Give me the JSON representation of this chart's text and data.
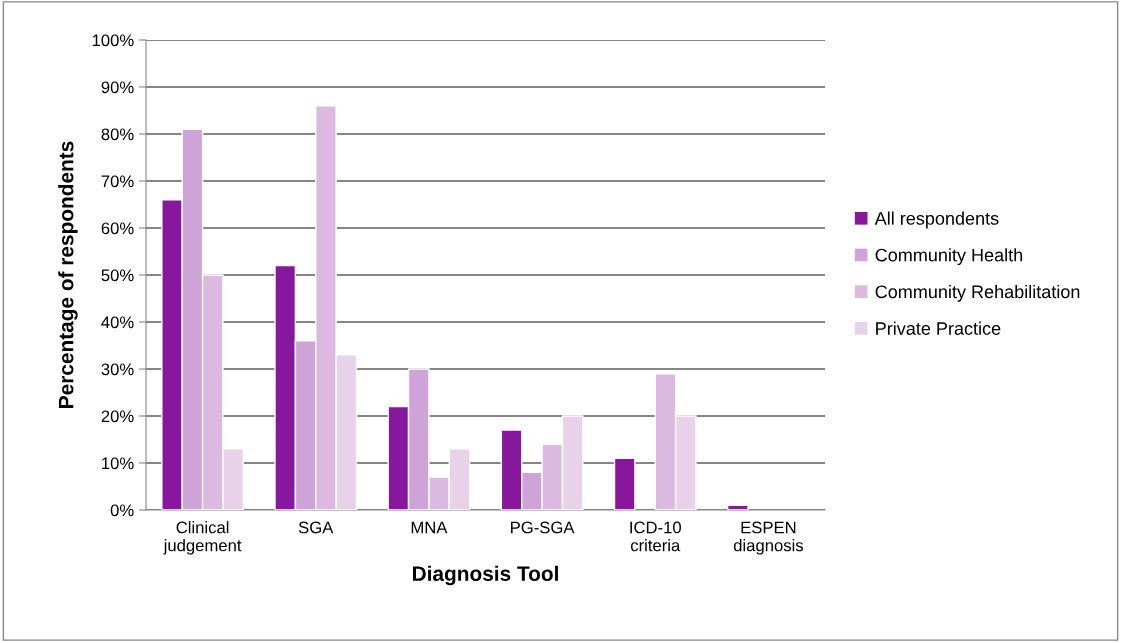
{
  "chart_data": {
    "type": "bar",
    "xlabel": "Diagnosis Tool",
    "ylabel": "Percentage of respondents",
    "categories": [
      "Clinical\njudgement",
      "SGA",
      "MNA",
      "PG-SGA",
      "ICD-10\ncriteria",
      "ESPEN\ndiagnosis"
    ],
    "series": [
      {
        "name": "All respondents",
        "color": "#87189d",
        "values": [
          66,
          52,
          22,
          17,
          11,
          1
        ]
      },
      {
        "name": "Community Health",
        "color": "#cea4d8",
        "values": [
          81,
          36,
          30,
          8,
          0,
          0
        ]
      },
      {
        "name": "Community Rehabilitation",
        "color": "#dbb9e0",
        "values": [
          50,
          86,
          7,
          14,
          29,
          0
        ]
      },
      {
        "name": "Private Practice",
        "color": "#e8d2ea",
        "values": [
          13,
          33,
          13,
          20,
          20,
          0
        ]
      }
    ],
    "ylim": [
      0,
      100
    ],
    "yticks": [
      {
        "value": 0,
        "label": "0%"
      },
      {
        "value": 10,
        "label": "10%"
      },
      {
        "value": 20,
        "label": "20%"
      },
      {
        "value": 30,
        "label": "30%"
      },
      {
        "value": 40,
        "label": "40%"
      },
      {
        "value": 50,
        "label": "50%"
      },
      {
        "value": 60,
        "label": "60%"
      },
      {
        "value": 70,
        "label": "70%"
      },
      {
        "value": 80,
        "label": "80%"
      },
      {
        "value": 90,
        "label": "90%"
      },
      {
        "value": 100,
        "label": "100%"
      }
    ],
    "grid": "y",
    "legend": "right"
  }
}
